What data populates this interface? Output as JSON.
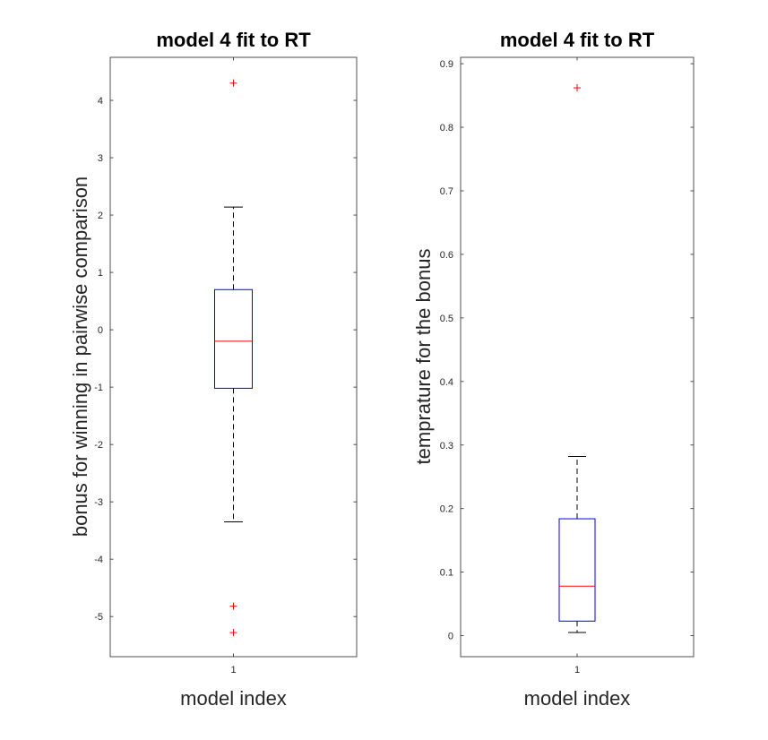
{
  "chart_data": [
    {
      "type": "box",
      "title": "model 4 fit to RT",
      "xlabel": "model index",
      "ylabel": "bonus for winning in pairwise comparison",
      "categories": [
        "1"
      ],
      "ylim": [
        -5.7,
        4.75
      ],
      "yticks": [
        -5,
        -4,
        -3,
        -2,
        -1,
        0,
        1,
        2,
        3,
        4
      ],
      "box": {
        "whisker_low": -3.35,
        "q1": -1.02,
        "median": -0.2,
        "q3": 0.7,
        "whisker_high": 2.14
      },
      "outliers": [
        4.3,
        -4.82,
        -5.28
      ],
      "colors": {
        "box": "#0000ff",
        "median": "#ff0000",
        "whisker": "#000000",
        "outlier": "#ff0000"
      }
    },
    {
      "type": "box",
      "title": "model 4 fit to RT",
      "xlabel": "model index",
      "ylabel": "temprature for the bonus",
      "categories": [
        "1"
      ],
      "ylim": [
        -0.033,
        0.91
      ],
      "yticks": [
        0,
        0.1,
        0.2,
        0.3,
        0.4,
        0.5,
        0.6,
        0.7,
        0.8,
        0.9
      ],
      "box": {
        "whisker_low": 0.005,
        "q1": 0.023,
        "median": 0.078,
        "q3": 0.184,
        "whisker_high": 0.282
      },
      "outliers": [
        0.862
      ],
      "colors": {
        "box": "#0000ff",
        "median": "#ff0000",
        "whisker": "#000000",
        "outlier": "#ff0000"
      }
    }
  ]
}
